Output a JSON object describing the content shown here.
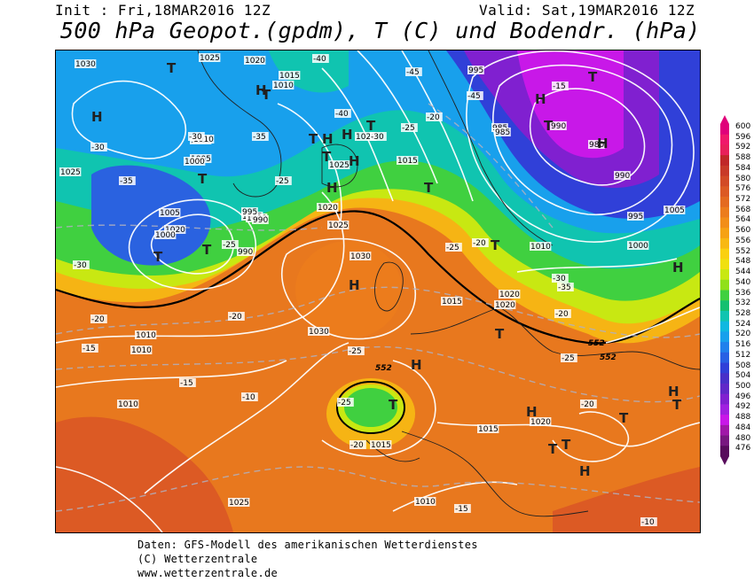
{
  "header": {
    "init": "Init : Fri,18MAR2016 12Z",
    "valid": "Valid: Sat,19MAR2016 12Z",
    "title": "500 hPa Geopot.(gpdm), T (C) und Bodendr. (hPa)"
  },
  "legend": {
    "values": [
      "600",
      "596",
      "592",
      "588",
      "584",
      "580",
      "576",
      "572",
      "568",
      "564",
      "560",
      "556",
      "552",
      "548",
      "544",
      "540",
      "536",
      "532",
      "528",
      "524",
      "520",
      "516",
      "512",
      "508",
      "504",
      "500",
      "496",
      "492",
      "488",
      "484",
      "480",
      "476"
    ],
    "colors": [
      "#e0007a",
      "#f0186a",
      "#e8205a",
      "#c02828",
      "#c83a28",
      "#d24a26",
      "#dc5a24",
      "#e46a20",
      "#ec7c1c",
      "#f28e18",
      "#f6a214",
      "#f8b812",
      "#fad010",
      "#f0e010",
      "#c8e812",
      "#90e01a",
      "#40d040",
      "#14c070",
      "#10c4b0",
      "#10b8e0",
      "#18a0ec",
      "#2080ec",
      "#2860e4",
      "#3040d8",
      "#4830c8",
      "#6028c8",
      "#8020d0",
      "#a020e0",
      "#c818e8",
      "#a018a8",
      "#781880",
      "#580c5c"
    ]
  },
  "pressure_labels": [
    "1030",
    "1025",
    "1020",
    "1015",
    "1010",
    "1010",
    "1005",
    "1000",
    "1025",
    "1010",
    "1005",
    "1020",
    "1000",
    "1030",
    "1025",
    "1030",
    "1020",
    "1015",
    "995",
    "990",
    "985",
    "980",
    "990",
    "995",
    "1005",
    "1000",
    "1010",
    "1020",
    "1020",
    "1015",
    "1010",
    "1010",
    "1025",
    "1020",
    "1015",
    "1010",
    "985",
    "1015",
    "1010",
    "990",
    "1020",
    "1005",
    "1000",
    "995",
    "990",
    "1025"
  ],
  "temperature_labels": [
    "-30",
    "-35",
    "-40",
    "-45",
    "-30",
    "-25",
    "-30",
    "-35",
    "-40",
    "-45",
    "-25",
    "-20",
    "-15",
    "-15",
    "-20",
    "-25",
    "-10",
    "-25",
    "-20",
    "-15",
    "-20",
    "-25",
    "-30",
    "-35",
    "-20",
    "-25",
    "-20",
    "-15",
    "-10",
    "-20",
    "-25",
    "-30"
  ],
  "geopotential_labels": [
    "552",
    "552",
    "552"
  ],
  "pressure_centers": [
    {
      "type": "H"
    },
    {
      "type": "T"
    },
    {
      "type": "H"
    },
    {
      "type": "T"
    },
    {
      "type": "H"
    },
    {
      "type": "H"
    },
    {
      "type": "T"
    },
    {
      "type": "T"
    },
    {
      "type": "H"
    },
    {
      "type": "H"
    },
    {
      "type": "T"
    },
    {
      "type": "T"
    },
    {
      "type": "T"
    },
    {
      "type": "T"
    },
    {
      "type": "T"
    },
    {
      "type": "H"
    },
    {
      "type": "T"
    },
    {
      "type": "H"
    },
    {
      "type": "T"
    },
    {
      "type": "H"
    },
    {
      "type": "T"
    },
    {
      "type": "T"
    },
    {
      "type": "H"
    },
    {
      "type": "T"
    },
    {
      "type": "H"
    },
    {
      "type": "H"
    },
    {
      "type": "T"
    },
    {
      "type": "T"
    },
    {
      "type": "H"
    },
    {
      "type": "T"
    },
    {
      "type": "T"
    },
    {
      "type": "H"
    }
  ],
  "footer": {
    "line1": "Daten: GFS-Modell des amerikanischen Wetterdienstes",
    "line2": "(C) Wetterzentrale",
    "line3": "www.wetterzentrale.de"
  }
}
